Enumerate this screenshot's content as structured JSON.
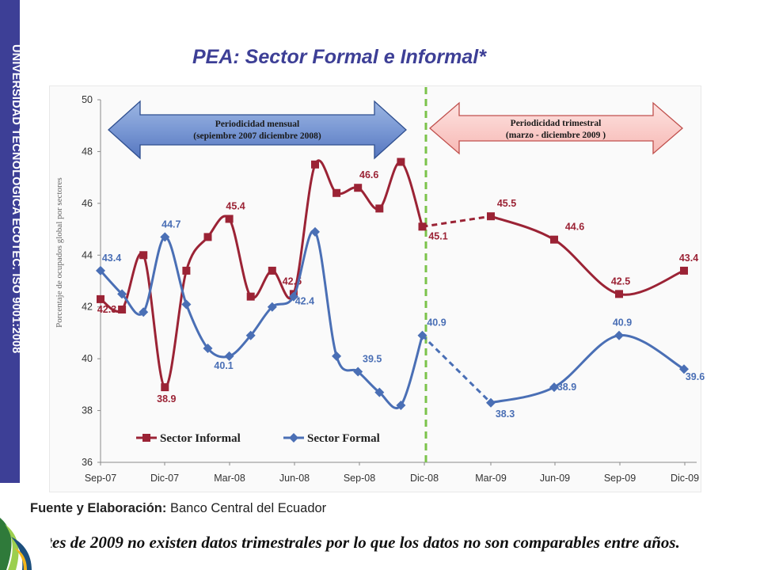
{
  "sidebar": {
    "label": "UNIVERSIDAD TECNOLÓGICA ECOTEC. ISO 9001:2008"
  },
  "title": "PEA: Sector Formal e Informal*",
  "source": {
    "label": "Fuente y Elaboración:",
    "value": " Banco Central del Ecuador"
  },
  "footnote": "*Antes de 2009 no existen datos trimestrales por lo que los datos no son comparables entre años.",
  "chart_data": {
    "type": "line",
    "ylabel": "Porcentaje de ocupados global por sectores",
    "ylim": [
      36,
      50
    ],
    "yticks": [
      36,
      38,
      40,
      42,
      44,
      46,
      48,
      50
    ],
    "xticks": [
      "Sep-07",
      "Dic-07",
      "Mar-08",
      "Jun-08",
      "Sep-08",
      "Dic-08",
      "Mar-09",
      "Jun-09",
      "Sep-09",
      "Dic-09"
    ],
    "grid": false,
    "legend_position": "bottom-left",
    "annotations": {
      "monthly": {
        "line1": "Periodicidad mensual",
        "line2": "(sepiembre 2007 diciembre 2008)"
      },
      "quarterly": {
        "line1": "Periodicidad trimestral",
        "line2": "(marzo - diciembre 2009 )"
      }
    },
    "series": [
      {
        "name": "Sector Informal",
        "color": "#9b2335",
        "marker": "square",
        "x": [
          "Sep-07",
          "Oct-07",
          "Nov-07",
          "Dic-07",
          "Ene-08",
          "Feb-08",
          "Mar-08",
          "Abr-08",
          "May-08",
          "Jun-08",
          "Jul-08",
          "Ago-08",
          "Sep-08",
          "Oct-08",
          "Nov-08",
          "Dic-08",
          "Mar-09",
          "Jun-09",
          "Sep-09",
          "Dic-09"
        ],
        "values": [
          42.3,
          41.9,
          44.0,
          38.9,
          43.4,
          44.7,
          45.4,
          42.4,
          43.4,
          42.5,
          47.5,
          46.4,
          46.6,
          45.8,
          47.6,
          45.1,
          45.5,
          44.6,
          42.5,
          43.4
        ],
        "labels": {
          "0": "42.3",
          "3": "38.9",
          "6": "45.4",
          "9": "42.5",
          "12": "46.6",
          "15": "45.1",
          "16": "45.5",
          "17": "44.6",
          "18": "42.5",
          "19": "43.4"
        }
      },
      {
        "name": "Sector Formal",
        "color": "#4a6fb5",
        "marker": "diamond",
        "x": [
          "Sep-07",
          "Oct-07",
          "Nov-07",
          "Dic-07",
          "Ene-08",
          "Feb-08",
          "Mar-08",
          "Abr-08",
          "May-08",
          "Jun-08",
          "Jul-08",
          "Ago-08",
          "Sep-08",
          "Oct-08",
          "Nov-08",
          "Dic-08",
          "Mar-09",
          "Jun-09",
          "Sep-09",
          "Dic-09"
        ],
        "values": [
          43.4,
          42.5,
          41.8,
          44.7,
          42.1,
          40.4,
          40.1,
          40.9,
          42.0,
          42.4,
          44.9,
          40.1,
          39.5,
          38.7,
          38.2,
          40.9,
          38.3,
          38.9,
          40.9,
          39.6
        ],
        "labels": {
          "0": "43.4",
          "3": "44.7",
          "6": "40.1",
          "9": "42.4",
          "12": "39.5",
          "15": "40.9",
          "16": "38.3",
          "17": "38.9",
          "18": "40.9",
          "19": "39.6"
        }
      }
    ]
  }
}
